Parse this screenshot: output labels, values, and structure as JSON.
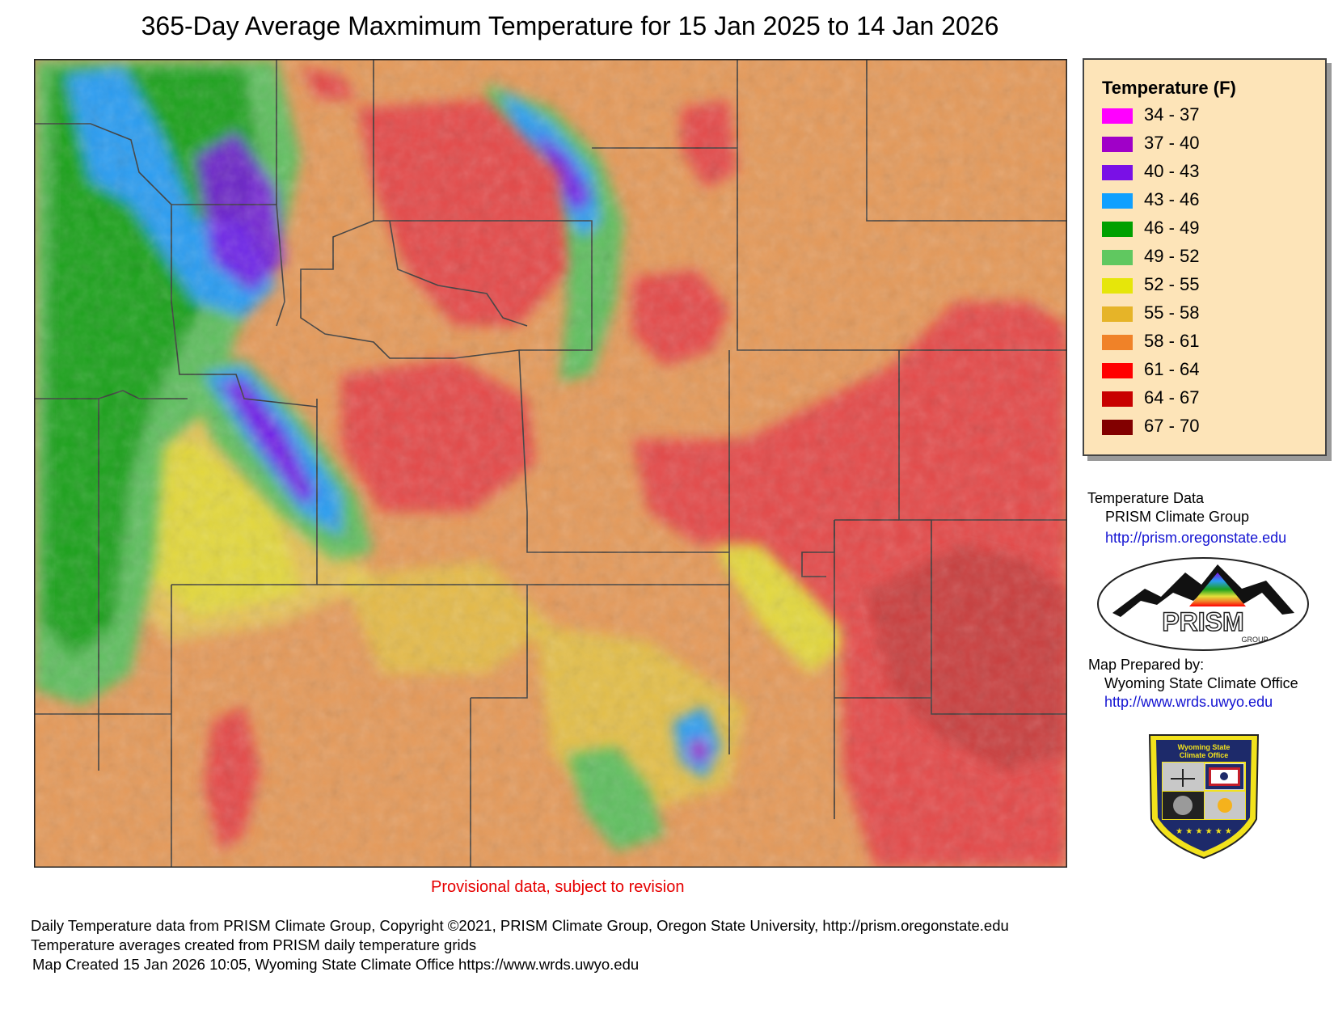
{
  "title": "365-Day Average Maxmimum Temperature for 15 Jan 2025 to 14 Jan 2026",
  "legend": {
    "title": "Temperature (F)",
    "items": [
      {
        "label": "34 - 37",
        "color": "#ff00ff"
      },
      {
        "label": "37 - 40",
        "color": "#a000c8"
      },
      {
        "label": "40 - 43",
        "color": "#7a10e6"
      },
      {
        "label": "43 - 46",
        "color": "#10a0ff"
      },
      {
        "label": "46 - 49",
        "color": "#00a000"
      },
      {
        "label": "49 - 52",
        "color": "#60c860"
      },
      {
        "label": "52 - 55",
        "color": "#e6e60a"
      },
      {
        "label": "55 - 58",
        "color": "#e6b428"
      },
      {
        "label": "58 - 61",
        "color": "#f08228"
      },
      {
        "label": "61 - 64",
        "color": "#ff0000"
      },
      {
        "label": "64 - 67",
        "color": "#c80000"
      },
      {
        "label": "67 - 70",
        "color": "#820000"
      }
    ]
  },
  "credits": {
    "data_heading": "Temperature Data",
    "data_source": "PRISM Climate Group",
    "data_url": "http://prism.oregonstate.edu",
    "prepared_heading": "Map Prepared by:",
    "prepared_by": "Wyoming State Climate Office",
    "prepared_url": "http://www.wrds.uwyo.edu"
  },
  "logos": {
    "prism_text": "PRISM",
    "prism_sub": "GROUP",
    "wsco_line1": "Wyoming State",
    "wsco_line2": "Climate Office"
  },
  "provisional_note": "Provisional data, subject to revision",
  "footer": {
    "line1": "Daily Temperature data from PRISM Climate Group, Copyright ©2021, PRISM Climate Group, Oregon State University, http://prism.oregonstate.edu",
    "line2": "Temperature averages created from PRISM daily temperature grids",
    "line3": "Map Created 15 Jan 2026 10:05, Wyoming State Climate Office https://www.wrds.uwyo.edu"
  }
}
